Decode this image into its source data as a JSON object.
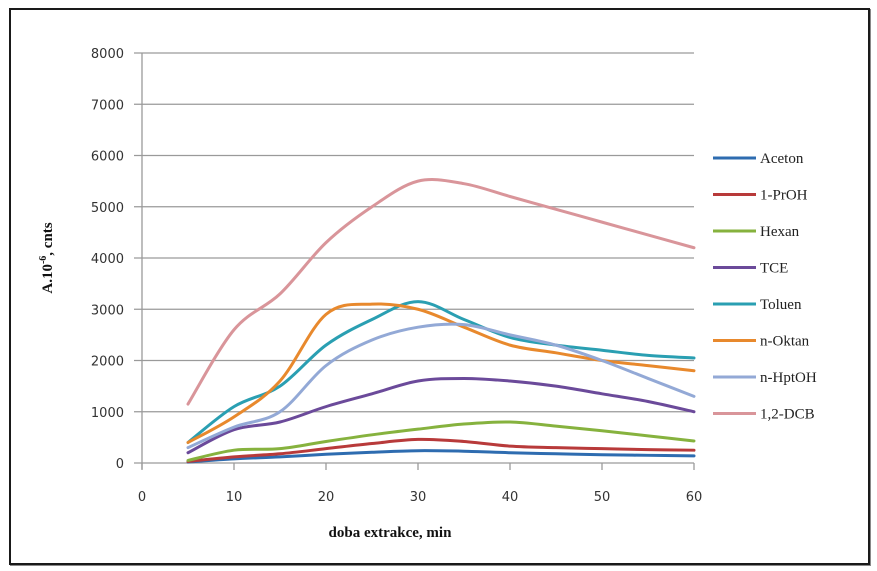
{
  "chart_data": {
    "type": "line",
    "title": "",
    "xlabel": "doba extrakce, min",
    "ylabel": "A.10-6, cnts",
    "ylabel_parts": {
      "base": "A.10",
      "sup": "-6",
      "rest": ", cnts"
    },
    "xlim": [
      0,
      60
    ],
    "ylim": [
      0,
      8000
    ],
    "x_ticks": [
      0,
      10,
      20,
      30,
      40,
      50,
      60
    ],
    "y_ticks": [
      0,
      1000,
      2000,
      3000,
      4000,
      5000,
      6000,
      7000,
      8000
    ],
    "grid": {
      "horizontal": true,
      "vertical": false
    },
    "legend_position": "right",
    "x": [
      5,
      10,
      15,
      20,
      25,
      30,
      35,
      40,
      45,
      50,
      55,
      60
    ],
    "series": [
      {
        "name": "Aceton",
        "color": "#2e6cb0",
        "values": [
          20,
          80,
          120,
          170,
          210,
          240,
          230,
          200,
          180,
          160,
          150,
          140
        ]
      },
      {
        "name": "1-PrOH",
        "color": "#b83a3a",
        "values": [
          30,
          120,
          180,
          280,
          380,
          460,
          420,
          330,
          300,
          280,
          260,
          250
        ]
      },
      {
        "name": "Hexan",
        "color": "#86b23e",
        "values": [
          50,
          250,
          280,
          420,
          550,
          660,
          760,
          800,
          720,
          630,
          530,
          430
        ]
      },
      {
        "name": "TCE",
        "color": "#6b4a9a",
        "values": [
          200,
          650,
          800,
          1100,
          1350,
          1600,
          1650,
          1600,
          1500,
          1350,
          1200,
          1000
        ]
      },
      {
        "name": "Toluen",
        "color": "#2a9fb2",
        "values": [
          400,
          1100,
          1500,
          2300,
          2800,
          3150,
          2800,
          2450,
          2300,
          2200,
          2100,
          2050
        ]
      },
      {
        "name": "n-Oktan",
        "color": "#e8892d",
        "values": [
          400,
          900,
          1600,
          2900,
          3100,
          3000,
          2650,
          2300,
          2150,
          2000,
          1900,
          1800
        ]
      },
      {
        "name": "n-HptOH",
        "color": "#93a9d6",
        "values": [
          300,
          700,
          1000,
          1900,
          2400,
          2650,
          2700,
          2500,
          2300,
          2000,
          1650,
          1300
        ]
      },
      {
        "name": "1,2-DCB",
        "color": "#d9959a",
        "values": [
          1150,
          2600,
          3300,
          4300,
          5000,
          5500,
          5450,
          5200,
          4950,
          4700,
          4450,
          4200
        ]
      }
    ]
  }
}
